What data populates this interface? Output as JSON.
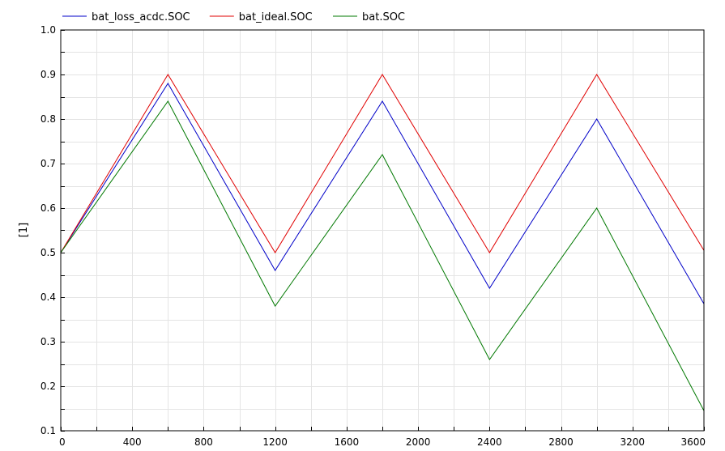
{
  "chart_data": {
    "type": "line",
    "ylabel": "[1]",
    "xlim": [
      0,
      3600
    ],
    "ylim": [
      0.1,
      1.0
    ],
    "x_ticks": [
      "0",
      "400",
      "800",
      "1200",
      "1600",
      "2000",
      "2400",
      "2800",
      "3200",
      "3600"
    ],
    "y_ticks": [
      "0.1",
      "0.2",
      "0.3",
      "0.4",
      "0.5",
      "0.6",
      "0.7",
      "0.8",
      "0.9",
      "1.0"
    ],
    "grid": true,
    "legend_position": "top-left",
    "series": [
      {
        "name": "bat_loss_acdc.SOC",
        "color": "#0000c8",
        "x": [
          0,
          600,
          1200,
          1800,
          2400,
          3000,
          3600
        ],
        "y": [
          0.5,
          0.88,
          0.46,
          0.84,
          0.42,
          0.8,
          0.385
        ]
      },
      {
        "name": "bat_ideal.SOC",
        "color": "#e00000",
        "x": [
          0,
          600,
          1200,
          1800,
          2400,
          3000,
          3600
        ],
        "y": [
          0.5,
          0.9,
          0.5,
          0.9,
          0.5,
          0.9,
          0.505
        ]
      },
      {
        "name": "bat.SOC",
        "color": "#007800",
        "x": [
          0,
          600,
          1200,
          1800,
          2400,
          3000,
          3600
        ],
        "y": [
          0.5,
          0.84,
          0.38,
          0.72,
          0.26,
          0.6,
          0.145
        ]
      }
    ]
  }
}
